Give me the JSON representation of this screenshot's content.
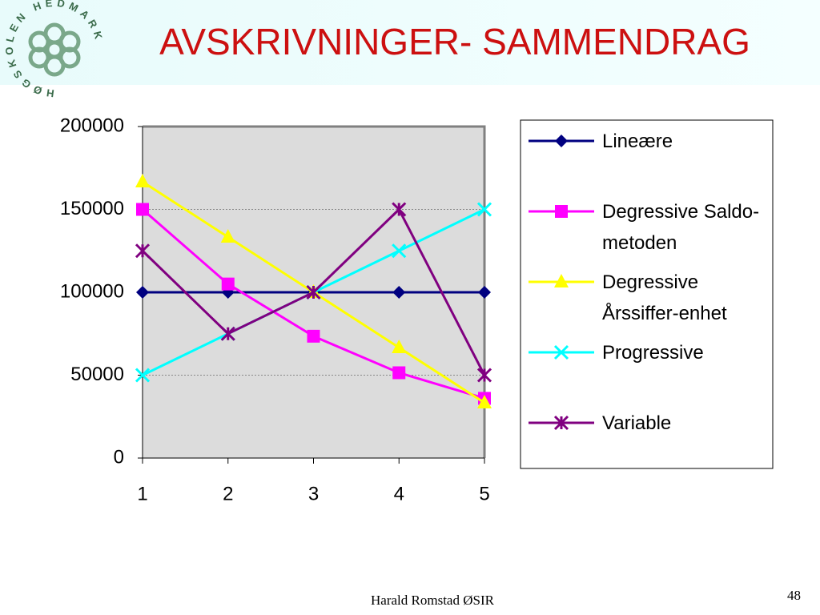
{
  "header": {
    "title": "AVSKRIVNINGER- SAMMENDRAG",
    "logo_text": "HØGSKOLEN HEDMARK"
  },
  "chart_data": {
    "type": "line",
    "x": [
      1,
      2,
      3,
      4,
      5
    ],
    "xlim": [
      1,
      5
    ],
    "xticks": [
      1,
      2,
      3,
      4,
      5
    ],
    "ylim": [
      0,
      200000
    ],
    "yticks": [
      0,
      50000,
      100000,
      150000,
      200000
    ],
    "grid": true,
    "legend": "right",
    "series": [
      {
        "name": "Lineære",
        "color": "#000080",
        "marker": "diamond",
        "values": [
          100000,
          100000,
          100000,
          100000,
          100000
        ]
      },
      {
        "name": "Degressive Saldo-metoden",
        "color": "#ff00ff",
        "marker": "square",
        "values": [
          150000,
          105000,
          73500,
          51450,
          36015
        ]
      },
      {
        "name": "Degressive Årssiffer-enhet",
        "color": "#ffff00",
        "marker": "triangle",
        "values": [
          166667,
          133333,
          100000,
          66667,
          33333
        ]
      },
      {
        "name": "Progressive",
        "color": "#00ffff",
        "marker": "x",
        "values": [
          50000,
          75000,
          100000,
          125000,
          150000
        ]
      },
      {
        "name": "Variable",
        "color": "#800080",
        "marker": "star",
        "values": [
          125000,
          75000,
          100000,
          150000,
          50000
        ]
      }
    ]
  },
  "footer": {
    "author": "Harald Romstad ØSIR",
    "page": "48"
  }
}
